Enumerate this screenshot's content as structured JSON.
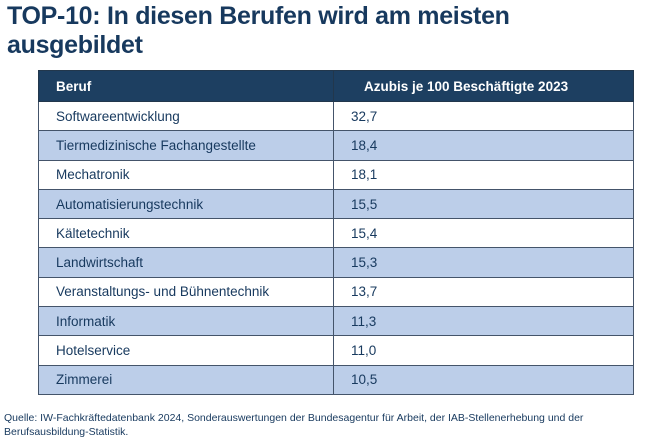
{
  "title": "TOP-10: In diesen Berufen wird am meisten ausgebildet",
  "table": {
    "headers": {
      "beruf": "Beruf",
      "value": "Azubis je 100 Beschäftigte 2023"
    },
    "rows": [
      {
        "beruf": "Softwareentwicklung",
        "value": "32,7"
      },
      {
        "beruf": "Tiermedizinische Fachangestellte",
        "value": "18,4"
      },
      {
        "beruf": "Mechatronik",
        "value": "18,1"
      },
      {
        "beruf": "Automatisierungstechnik",
        "value": "15,5"
      },
      {
        "beruf": "Kältetechnik",
        "value": "15,4"
      },
      {
        "beruf": "Landwirtschaft",
        "value": "15,3"
      },
      {
        "beruf": "Veranstaltungs- und Bühnentechnik",
        "value": "13,7"
      },
      {
        "beruf": "Informatik",
        "value": "11,3"
      },
      {
        "beruf": "Hotelservice",
        "value": "11,0"
      },
      {
        "beruf": "Zimmerei",
        "value": "10,5"
      }
    ]
  },
  "chart_data": {
    "type": "table",
    "title": "TOP-10: In diesen Berufen wird am meisten ausgebildet",
    "columns": [
      "Beruf",
      "Azubis je 100 Beschäftigte 2023"
    ],
    "categories": [
      "Softwareentwicklung",
      "Tiermedizinische Fachangestellte",
      "Mechatronik",
      "Automatisierungstechnik",
      "Kältetechnik",
      "Landwirtschaft",
      "Veranstaltungs- und Bühnentechnik",
      "Informatik",
      "Hotelservice",
      "Zimmerei"
    ],
    "values": [
      32.7,
      18.4,
      18.1,
      15.5,
      15.4,
      15.3,
      13.7,
      11.3,
      11.0,
      10.5
    ],
    "value_unit": "Azubis je 100 Beschäftigte",
    "year": "2023"
  },
  "source": "Quelle: IW-Fachkräftedatenbank 2024, Sonderauswertungen der Bundesagentur für Arbeit, der IAB-Stellenerhebung und der Berufsausbildung-Statistik.",
  "colors": {
    "title_text": "#17395e",
    "header_bg": "#1d3f61",
    "header_text": "#ffffff",
    "row_alt_bg": "#bccee9",
    "row_bg": "#ffffff",
    "body_text": "#17395e"
  }
}
